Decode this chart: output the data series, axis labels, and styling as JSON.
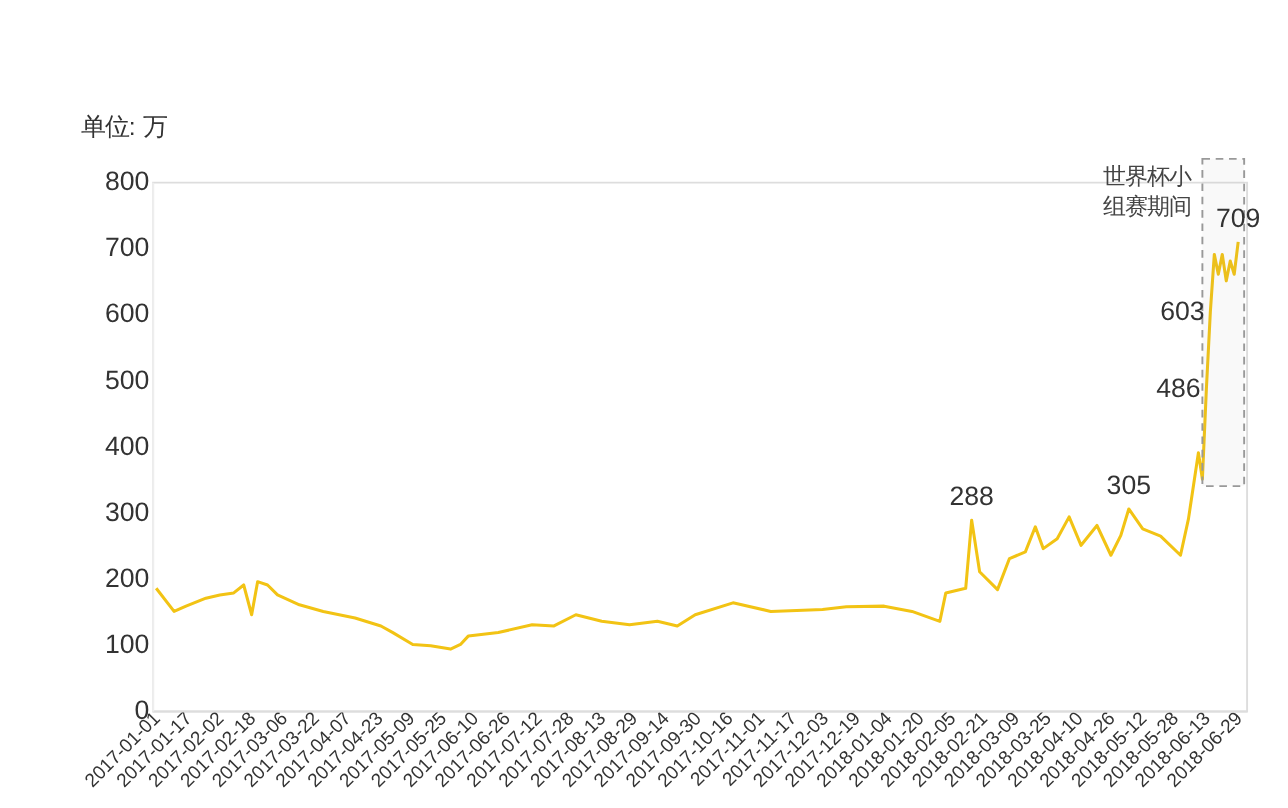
{
  "chart_data": {
    "type": "line",
    "ylabel": "单位: 万",
    "x": [
      "2017-01-01",
      "2017-01-10",
      "2017-01-16",
      "2017-01-26",
      "2017-02-02",
      "2017-02-09",
      "2017-02-14",
      "2017-02-18",
      "2017-02-21",
      "2017-02-26",
      "2017-03-03",
      "2017-03-14",
      "2017-03-26",
      "2017-04-11",
      "2017-04-24",
      "2017-04-30",
      "2017-05-10",
      "2017-05-19",
      "2017-05-29",
      "2017-06-03",
      "2017-06-07",
      "2017-06-22",
      "2017-07-09",
      "2017-07-20",
      "2017-07-31",
      "2017-08-13",
      "2017-08-27",
      "2017-09-10",
      "2017-09-20",
      "2017-09-29",
      "2017-10-18",
      "2017-11-06",
      "2017-12-02",
      "2017-12-14",
      "2018-01-02",
      "2018-01-16",
      "2018-01-30",
      "2018-02-02",
      "2018-02-12",
      "2018-02-15",
      "2018-02-19",
      "2018-02-28",
      "2018-03-06",
      "2018-03-14",
      "2018-03-19",
      "2018-03-23",
      "2018-03-30",
      "2018-04-05",
      "2018-04-11",
      "2018-04-19",
      "2018-04-26",
      "2018-05-01",
      "2018-05-05",
      "2018-05-12",
      "2018-05-21",
      "2018-05-31",
      "2018-06-04",
      "2018-06-09",
      "2018-06-11",
      "2018-06-13",
      "2018-06-15",
      "2018-06-17",
      "2018-06-19",
      "2018-06-21",
      "2018-06-23",
      "2018-06-25",
      "2018-06-27",
      "2018-06-29"
    ],
    "series": [
      {
        "color": "#f2c314",
        "values": [
          185,
          150,
          158,
          170,
          175,
          178,
          190,
          145,
          195,
          190,
          175,
          160,
          150,
          140,
          128,
          118,
          100,
          98,
          93,
          100,
          113,
          118,
          130,
          128,
          145,
          135,
          130,
          135,
          128,
          145,
          163,
          150,
          153,
          157,
          158,
          150,
          135,
          178,
          185,
          288,
          210,
          183,
          230,
          240,
          278,
          245,
          260,
          293,
          250,
          280,
          235,
          265,
          305,
          275,
          264,
          235,
          290,
          390,
          350,
          486,
          603,
          690,
          660,
          690,
          650,
          680,
          660,
          709
        ]
      }
    ],
    "xlim": [
      "2016-12-30",
      "2018-07-03"
    ],
    "xticks": [
      "2017-01-01",
      "2017-01-17",
      "2017-02-02",
      "2017-02-18",
      "2017-03-06",
      "2017-03-22",
      "2017-04-07",
      "2017-04-23",
      "2017-05-09",
      "2017-05-25",
      "2017-06-10",
      "2017-06-26",
      "2017-07-12",
      "2017-07-28",
      "2017-08-13",
      "2017-08-29",
      "2017-09-14",
      "2017-09-30",
      "2017-10-16",
      "2017-11-01",
      "2017-11-17",
      "2017-12-03",
      "2017-12-19",
      "2018-01-04",
      "2018-01-20",
      "2018-02-05",
      "2018-02-21",
      "2018-03-09",
      "2018-03-25",
      "2018-04-10",
      "2018-04-26",
      "2018-05-12",
      "2018-05-28",
      "2018-06-13",
      "2018-06-29"
    ],
    "ylim": [
      0,
      800
    ],
    "yticks": [
      0,
      100,
      200,
      300,
      400,
      500,
      600,
      700,
      800
    ],
    "grid": false,
    "marker": "none",
    "line_style": "solid",
    "annotations": [
      {
        "text": "288",
        "x": "2018-02-15",
        "y": 288
      },
      {
        "text": "305",
        "x": "2018-05-05",
        "y": 305
      },
      {
        "text": "486",
        "x": "2018-06-13",
        "y": 486
      },
      {
        "text": "603",
        "x": "2018-06-15",
        "y": 603
      },
      {
        "text": "709",
        "x": "2018-06-29",
        "y": 709
      }
    ],
    "bands": [
      {
        "axis": "x",
        "from": "2018-06-11",
        "to": "2018-07-02",
        "label": "世界杯小组赛期间",
        "color": "#999999"
      }
    ]
  }
}
